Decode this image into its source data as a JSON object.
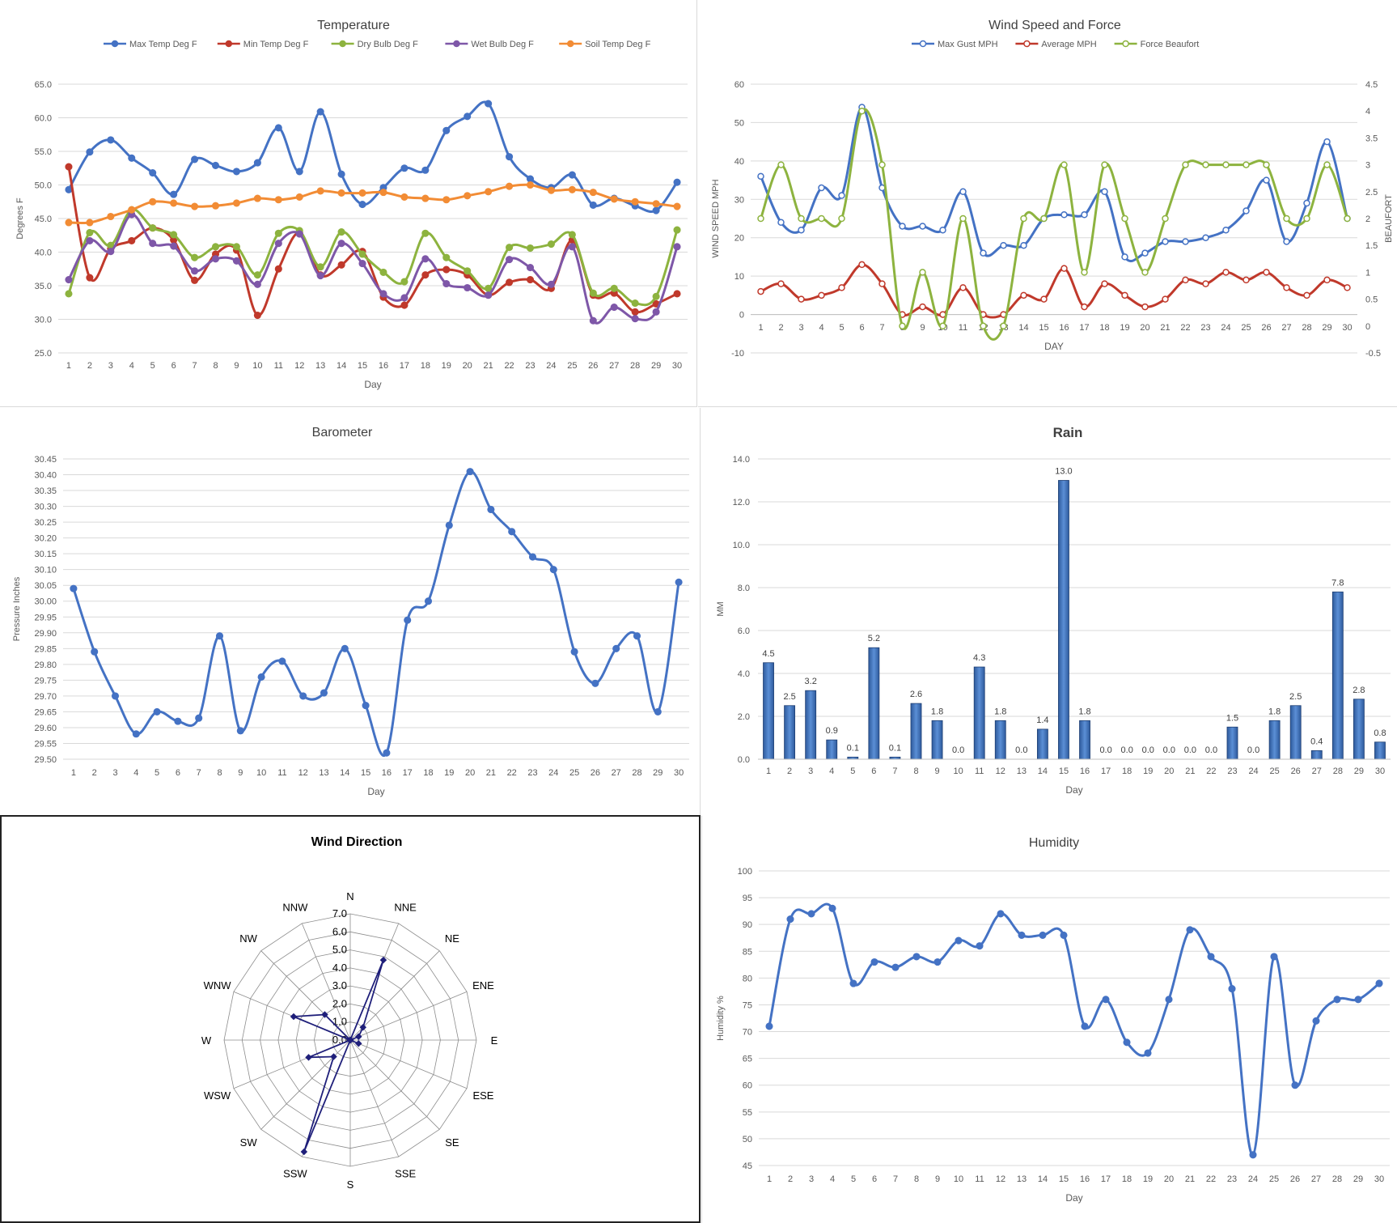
{
  "colors": {
    "max_temp": "#4472C4",
    "min_temp": "#C0392B",
    "dry_bulb": "#8DB33F",
    "wet_bulb": "#7E57A8",
    "soil_temp": "#F28C35",
    "grid": "#d9d9d9",
    "axis_text": "#595959",
    "rain_bar": "#3F6FB8",
    "radar_line": "#1F1F7A"
  },
  "chart_data": [
    {
      "id": "temperature",
      "type": "line",
      "title": "Temperature",
      "xlabel": "Day",
      "ylabel": "Degrees F",
      "ylim": [
        25,
        65
      ],
      "yticks": [
        "25.0",
        "30.0",
        "35.0",
        "40.0",
        "45.0",
        "50.0",
        "55.0",
        "60.0",
        "65.0"
      ],
      "categories": [
        "1",
        "2",
        "3",
        "4",
        "5",
        "6",
        "7",
        "8",
        "9",
        "10",
        "11",
        "12",
        "13",
        "14",
        "15",
        "16",
        "17",
        "18",
        "19",
        "20",
        "21",
        "22",
        "23",
        "24",
        "25",
        "26",
        "27",
        "28",
        "29",
        "30"
      ],
      "grid": true,
      "legend": "top",
      "series": [
        {
          "name": "Max Temp Deg F",
          "values": [
            49.3,
            54.9,
            56.7,
            54.0,
            51.8,
            48.6,
            53.8,
            52.9,
            52.0,
            53.3,
            58.5,
            52.0,
            60.9,
            51.6,
            47.1,
            49.6,
            52.5,
            52.2,
            58.1,
            60.2,
            62.1,
            54.2,
            50.9,
            49.6,
            51.5,
            47.0,
            48.0,
            46.9,
            46.2,
            50.4
          ]
        },
        {
          "name": "Min Temp Deg F",
          "values": [
            52.7,
            36.2,
            40.5,
            41.7,
            43.6,
            41.8,
            35.8,
            39.7,
            40.3,
            30.6,
            37.5,
            42.9,
            36.6,
            38.1,
            40.1,
            33.3,
            32.1,
            36.6,
            37.4,
            36.6,
            33.6,
            35.5,
            35.9,
            34.6,
            41.8,
            33.6,
            33.9,
            31.1,
            32.3,
            33.8
          ]
        },
        {
          "name": "Dry Bulb Deg F",
          "values": [
            33.8,
            42.9,
            41.0,
            46.3,
            43.6,
            42.6,
            39.2,
            40.8,
            40.8,
            36.6,
            42.8,
            43.2,
            37.8,
            43.0,
            39.7,
            37.0,
            35.6,
            42.8,
            39.2,
            37.2,
            34.6,
            40.7,
            40.6,
            41.2,
            42.6,
            33.9,
            34.6,
            32.4,
            33.4,
            43.3
          ]
        },
        {
          "name": "Wet Bulb Deg F",
          "values": [
            35.9,
            41.7,
            40.1,
            45.6,
            41.3,
            40.9,
            37.2,
            39.0,
            38.7,
            35.2,
            41.3,
            42.7,
            36.5,
            41.3,
            38.3,
            33.8,
            33.2,
            39.0,
            35.3,
            34.7,
            33.6,
            38.9,
            37.7,
            35.2,
            40.8,
            29.8,
            31.8,
            30.1,
            31.1,
            40.8
          ]
        },
        {
          "name": "Soil Temp Deg F",
          "values": [
            44.4,
            44.4,
            45.3,
            46.3,
            47.5,
            47.3,
            46.8,
            46.9,
            47.3,
            48.0,
            47.8,
            48.2,
            49.1,
            48.8,
            48.8,
            48.9,
            48.2,
            48.0,
            47.8,
            48.4,
            49.0,
            49.8,
            50.0,
            49.2,
            49.3,
            48.9,
            47.9,
            47.5,
            47.2,
            46.8
          ]
        }
      ]
    },
    {
      "id": "wind",
      "type": "line",
      "title": "Wind Speed and Force",
      "xlabel": "DAY",
      "ylabel": "WIND SPEED MPH",
      "ylabel_right": "BEAUFORT",
      "ylim": [
        -10,
        60
      ],
      "yticks": [
        "-10",
        "0",
        "10",
        "20",
        "30",
        "40",
        "50",
        "60"
      ],
      "ylim_right": [
        -0.5,
        4.5
      ],
      "yticks_right": [
        "-0.5",
        "0",
        "0.5",
        "1",
        "1.5",
        "2",
        "2.5",
        "3",
        "3.5",
        "4",
        "4.5"
      ],
      "categories": [
        "1",
        "2",
        "3",
        "4",
        "5",
        "6",
        "7",
        "8",
        "9",
        "10",
        "11",
        "12",
        "13",
        "14",
        "15",
        "16",
        "17",
        "18",
        "19",
        "20",
        "21",
        "22",
        "23",
        "24",
        "25",
        "26",
        "27",
        "28",
        "29",
        "30"
      ],
      "grid": true,
      "legend": "top",
      "series": [
        {
          "name": "Max Gust MPH",
          "axis": "left",
          "values": [
            36,
            24,
            22,
            33,
            31,
            54,
            33,
            23,
            23,
            22,
            32,
            16,
            18,
            18,
            25,
            26,
            26,
            32,
            15,
            16,
            19,
            19,
            20,
            22,
            27,
            35,
            19,
            29,
            45,
            25
          ]
        },
        {
          "name": "Average MPH",
          "axis": "left",
          "values": [
            6,
            8,
            4,
            5,
            7,
            13,
            8,
            0,
            2,
            0,
            7,
            0,
            0,
            5,
            4,
            12,
            2,
            8,
            5,
            2,
            4,
            9,
            8,
            11,
            9,
            11,
            7,
            5,
            9,
            7
          ]
        },
        {
          "name": "Force Beaufort",
          "axis": "right",
          "values": [
            2,
            3,
            2,
            2,
            2,
            4,
            3,
            0,
            1,
            0,
            2,
            0,
            0,
            2,
            2,
            3,
            1,
            3,
            2,
            1,
            2,
            3,
            3,
            3,
            3,
            3,
            2,
            2,
            3,
            2
          ]
        }
      ]
    },
    {
      "id": "barometer",
      "type": "line",
      "title": "Barometer",
      "xlabel": "Day",
      "ylabel": "Pressure Inches",
      "ylim": [
        29.5,
        30.45
      ],
      "yticks": [
        "29.50",
        "29.55",
        "29.60",
        "29.65",
        "29.70",
        "29.75",
        "29.80",
        "29.85",
        "29.90",
        "29.95",
        "30.00",
        "30.05",
        "30.10",
        "30.15",
        "30.20",
        "30.25",
        "30.30",
        "30.35",
        "30.40",
        "30.45"
      ],
      "categories": [
        "1",
        "2",
        "3",
        "4",
        "5",
        "6",
        "7",
        "8",
        "9",
        "10",
        "11",
        "12",
        "13",
        "14",
        "15",
        "16",
        "17",
        "18",
        "19",
        "20",
        "21",
        "22",
        "23",
        "24",
        "25",
        "26",
        "27",
        "28",
        "29",
        "30"
      ],
      "grid": true,
      "series": [
        {
          "values": [
            30.04,
            29.84,
            29.7,
            29.58,
            29.65,
            29.62,
            29.63,
            29.89,
            29.59,
            29.76,
            29.81,
            29.7,
            29.71,
            29.85,
            29.67,
            29.52,
            29.94,
            30.0,
            30.24,
            30.41,
            30.29,
            30.22,
            30.14,
            30.1,
            29.84,
            29.74,
            29.85,
            29.89,
            29.65,
            30.06
          ]
        }
      ]
    },
    {
      "id": "rain",
      "type": "bar",
      "title": "Rain",
      "xlabel": "Day",
      "ylabel": "MM",
      "ylim": [
        0,
        14
      ],
      "yticks": [
        "0.0",
        "2.0",
        "4.0",
        "6.0",
        "8.0",
        "10.0",
        "12.0",
        "14.0"
      ],
      "categories": [
        "1",
        "2",
        "3",
        "4",
        "5",
        "6",
        "7",
        "8",
        "9",
        "10",
        "11",
        "12",
        "13",
        "14",
        "15",
        "16",
        "17",
        "18",
        "19",
        "20",
        "21",
        "22",
        "23",
        "24",
        "25",
        "26",
        "27",
        "28",
        "29",
        "30"
      ],
      "grid": true,
      "values": [
        4.5,
        2.5,
        3.2,
        0.9,
        0.1,
        5.2,
        0.1,
        2.6,
        1.8,
        0.0,
        4.3,
        1.8,
        0.0,
        1.4,
        13.0,
        1.8,
        0.0,
        0.0,
        0.0,
        0.0,
        0.0,
        0.0,
        1.5,
        0.0,
        1.8,
        2.5,
        0.4,
        7.8,
        2.8,
        0.8
      ],
      "labels": [
        "4.5",
        "2.5",
        "3.2",
        "0.9",
        "0.1",
        "5.2",
        "0.1",
        "2.6",
        "1.8",
        "0.0",
        "4.3",
        "1.8",
        "0.0",
        "1.4",
        "13.0",
        "1.8",
        "0.0",
        "0.0",
        "0.0",
        "0.0",
        "0.0",
        "0.0",
        "1.5",
        "0.0",
        "1.8",
        "2.5",
        "0.4",
        "7.8",
        "2.8",
        "0.8"
      ]
    },
    {
      "id": "wind_direction",
      "type": "radar",
      "title": "Wind Direction",
      "categories": [
        "N",
        "NNE",
        "NE",
        "ENE",
        "E",
        "ESE",
        "SE",
        "SSE",
        "S",
        "SSW",
        "SW",
        "WSW",
        "W",
        "WNW",
        "NW",
        "NNW"
      ],
      "rlim": [
        0,
        7
      ],
      "rticks": [
        "0.0",
        "1.0",
        "2.0",
        "3.0",
        "4.0",
        "5.0",
        "6.0",
        "7.0"
      ],
      "values": [
        0.0,
        4.8,
        1.0,
        0.5,
        0.0,
        0.5,
        0.0,
        0.0,
        0.0,
        6.7,
        1.3,
        2.5,
        0.0,
        3.4,
        2.0,
        0.0
      ]
    },
    {
      "id": "humidity",
      "type": "line",
      "title": "Humidity",
      "xlabel": "Day",
      "ylabel": "Humidity %",
      "ylim": [
        45,
        100
      ],
      "yticks": [
        "45",
        "50",
        "55",
        "60",
        "65",
        "70",
        "75",
        "80",
        "85",
        "90",
        "95",
        "100"
      ],
      "categories": [
        "1",
        "2",
        "3",
        "4",
        "5",
        "6",
        "7",
        "8",
        "9",
        "10",
        "11",
        "12",
        "13",
        "14",
        "15",
        "16",
        "17",
        "18",
        "19",
        "20",
        "21",
        "22",
        "23",
        "24",
        "25",
        "26",
        "27",
        "28",
        "29",
        "30"
      ],
      "grid": true,
      "series": [
        {
          "values": [
            71,
            91,
            92,
            93,
            79,
            83,
            82,
            84,
            83,
            87,
            86,
            92,
            88,
            88,
            88,
            71,
            76,
            68,
            66,
            76,
            89,
            84,
            78,
            47,
            84,
            60,
            72,
            76,
            76,
            79
          ]
        }
      ]
    }
  ]
}
